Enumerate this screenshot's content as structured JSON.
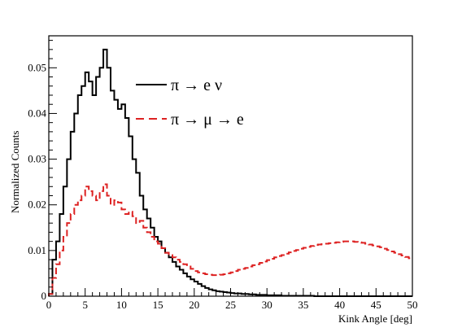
{
  "chart_data": {
    "type": "line",
    "xlabel": "Kink Angle [deg]",
    "ylabel": "Normalized Counts",
    "xlim": [
      0,
      50
    ],
    "ylim": [
      0,
      0.057
    ],
    "x_ticks": [
      "0",
      "5",
      "10",
      "15",
      "20",
      "25",
      "30",
      "35",
      "40",
      "45",
      "50"
    ],
    "y_ticks": [
      "0",
      "0.01",
      "0.02",
      "0.03",
      "0.04",
      "0.05"
    ],
    "grid": false,
    "legend_position": "top-center",
    "step": "histogram",
    "bin_width": 0.5,
    "series": [
      {
        "name": "π → e ν",
        "color": "#000000",
        "dash": "solid",
        "values": [
          0.0005,
          0.008,
          0.012,
          0.018,
          0.024,
          0.03,
          0.036,
          0.04,
          0.044,
          0.046,
          0.049,
          0.047,
          0.044,
          0.048,
          0.05,
          0.054,
          0.05,
          0.045,
          0.043,
          0.041,
          0.042,
          0.039,
          0.035,
          0.03,
          0.027,
          0.022,
          0.019,
          0.017,
          0.015,
          0.013,
          0.012,
          0.0105,
          0.0095,
          0.0085,
          0.0075,
          0.0065,
          0.0058,
          0.005,
          0.0043,
          0.0037,
          0.0032,
          0.0027,
          0.0022,
          0.0018,
          0.0015,
          0.0013,
          0.0011,
          0.001,
          0.0009,
          0.0008,
          0.0007,
          0.0006,
          0.0006,
          0.0005,
          0.0005,
          0.0004,
          0.0004,
          0.0003,
          0.0003,
          0.0003,
          0.0002,
          0.0002,
          0.0002,
          0.0002,
          0.0001,
          0.0001,
          0.0001,
          0.0001,
          0.0001,
          0.0001,
          0.0001,
          0.0001,
          0.0001,
          0.0,
          0.0,
          0.0,
          0.0,
          0.0,
          0.0,
          0.0,
          0.0,
          0.0,
          0.0,
          0.0,
          0.0,
          0.0,
          0.0,
          0.0,
          0.0,
          0.0,
          0.0,
          0.0,
          0.0,
          0.0,
          0.0,
          0.0,
          0.0,
          0.0,
          0.0,
          0.0
        ]
      },
      {
        "name": "π → μ → e",
        "color": "#dd2222",
        "dash": "dashed",
        "values": [
          0.0005,
          0.004,
          0.007,
          0.01,
          0.013,
          0.016,
          0.018,
          0.02,
          0.021,
          0.022,
          0.024,
          0.023,
          0.022,
          0.021,
          0.023,
          0.0245,
          0.022,
          0.02,
          0.021,
          0.0205,
          0.019,
          0.018,
          0.0185,
          0.0175,
          0.016,
          0.0165,
          0.015,
          0.014,
          0.013,
          0.012,
          0.0115,
          0.0105,
          0.0095,
          0.009,
          0.0085,
          0.008,
          0.0075,
          0.007,
          0.0065,
          0.006,
          0.0055,
          0.0052,
          0.005,
          0.0048,
          0.0047,
          0.0046,
          0.0046,
          0.0047,
          0.0048,
          0.005,
          0.0052,
          0.0055,
          0.0058,
          0.006,
          0.0062,
          0.0065,
          0.0068,
          0.007,
          0.0073,
          0.0076,
          0.0079,
          0.0082,
          0.0085,
          0.0088,
          0.009,
          0.0093,
          0.0096,
          0.0099,
          0.0101,
          0.0104,
          0.0106,
          0.0108,
          0.011,
          0.0112,
          0.0113,
          0.0114,
          0.0115,
          0.0116,
          0.0117,
          0.0118,
          0.0119,
          0.012,
          0.012,
          0.012,
          0.0119,
          0.0118,
          0.0117,
          0.0115,
          0.0113,
          0.0111,
          0.0109,
          0.0107,
          0.0104,
          0.0101,
          0.0098,
          0.0095,
          0.0092,
          0.0089,
          0.0086,
          0.0083
        ]
      }
    ]
  }
}
